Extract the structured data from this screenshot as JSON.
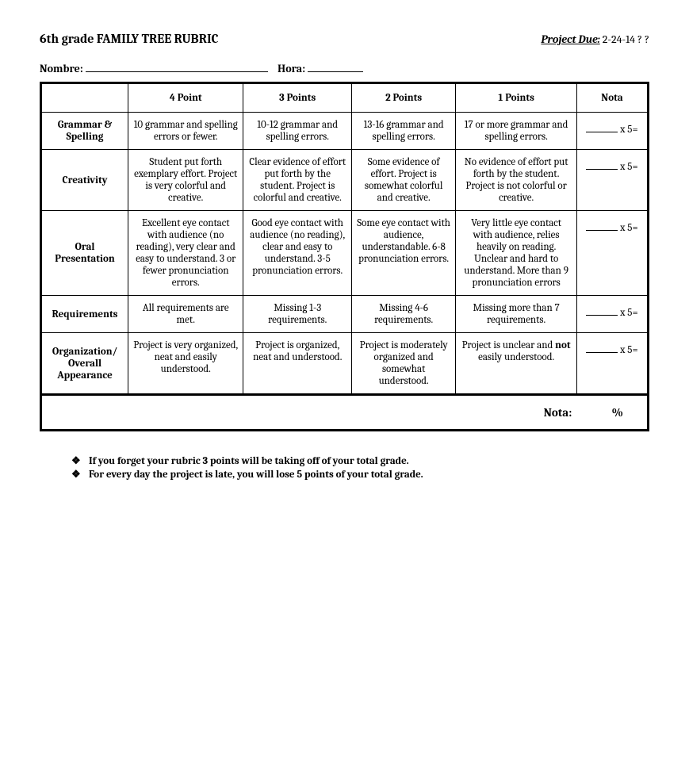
{
  "title": "6th grade FAMILY TREE RUBRIC",
  "due_label": "Project Due:",
  "due_date": "2-24-14  ?  ?",
  "name_label": "Nombre:",
  "hora_label": "Hora:",
  "columns": [
    "4 Point",
    "3 Points",
    "2 Points",
    "1 Points",
    "Nota"
  ],
  "nota_suffix": " x 5=",
  "rows": [
    {
      "label": "Grammar & Spelling",
      "cells": [
        "10 grammar and spelling errors or fewer.",
        "10-12 grammar and spelling errors.",
        "13-16 grammar and spelling errors.",
        "17 or more grammar and spelling errors."
      ]
    },
    {
      "label": "Creativity",
      "cells": [
        "Student put forth exemplary effort.  Project is very colorful and creative.",
        "Clear evidence of effort put forth by the student.  Project is colorful and creative.",
        "Some evidence of effort.  Project is somewhat colorful and creative.",
        "No evidence of effort put forth by the student.  Project is not colorful or creative."
      ]
    },
    {
      "label": "Oral Presentation",
      "cells": [
        "Excellent eye contact with audience (no reading), very clear and easy to understand. 3 or fewer pronunciation errors.",
        "Good eye contact with audience (no reading), clear and easy to understand. 3-5 pronunciation errors.",
        "Some eye contact with audience, understandable. 6-8 pronunciation errors.",
        "Very little eye contact with audience, relies heavily on reading.  Unclear and hard to understand. More than 9 pronunciation errors"
      ]
    },
    {
      "label": "Requirements",
      "cells": [
        "All requirements are met.",
        "Missing 1-3 requirements.",
        "Missing 4-6 requirements.",
        "Missing more than 7 requirements."
      ]
    },
    {
      "label": "Organization/ Overall Appearance",
      "cells": [
        "Project is very organized, neat and easily understood.",
        "Project is organized, neat and understood.",
        "Project is moderately organized and somewhat understood.",
        "Project is unclear and not easily understood."
      ],
      "bold_word": "not",
      "bold_cell_index": 3
    }
  ],
  "total_label": "Nota:",
  "total_suffix": "%",
  "notes": [
    "If you forget your rubric 3 points will be taking off of your total grade.",
    "For every day the project is late, you will lose 5 points of your total grade."
  ],
  "bullet_symbol": "❖"
}
